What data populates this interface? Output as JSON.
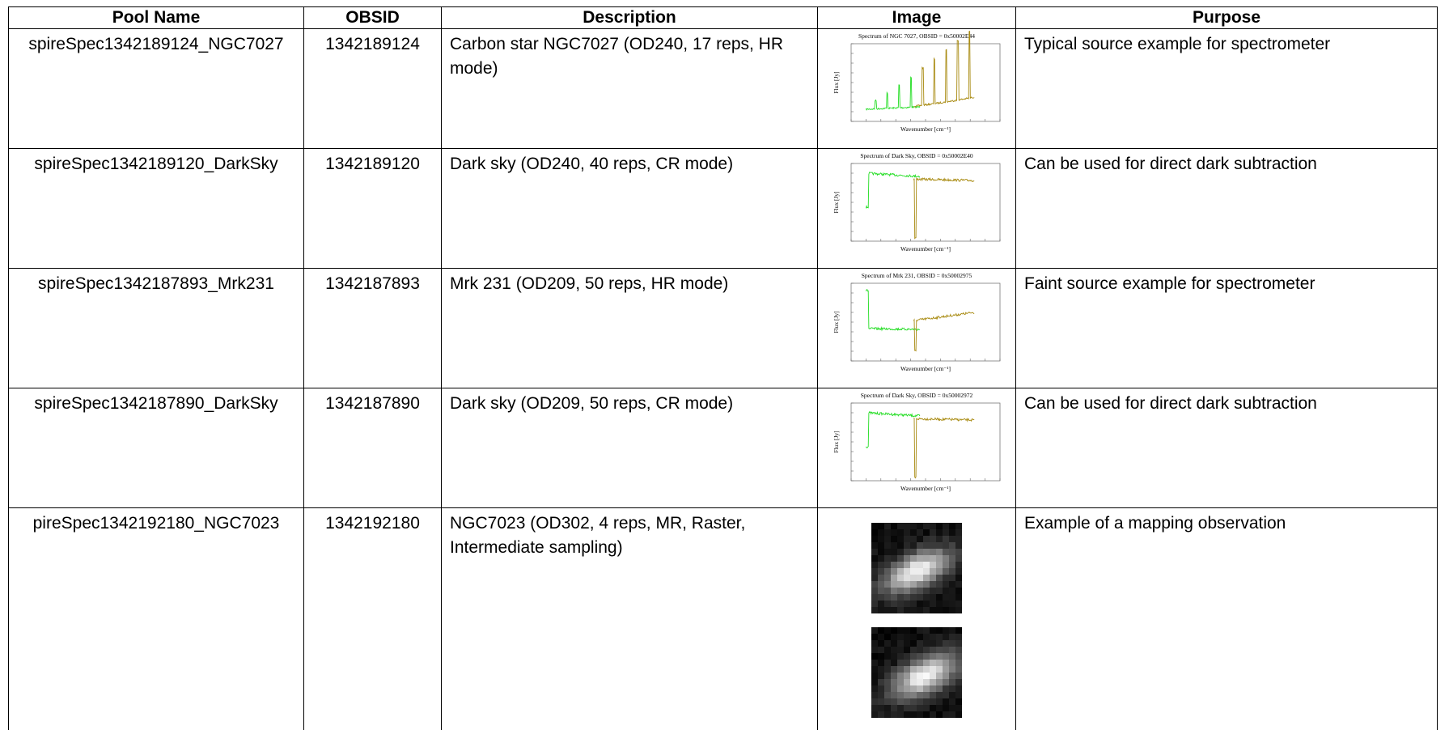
{
  "table": {
    "columns": [
      "Pool Name",
      "OBSID",
      "Description",
      "Image",
      "Purpose"
    ],
    "rows": [
      {
        "pool_name": "spireSpec1342189124_NGC7027",
        "obsid": "1342189124",
        "description": "Carbon star NGC7027 (OD240, 17 reps, HR mode)",
        "image": {
          "title": "Spectrum of NGC 7027, OBSID = 0x50002E44",
          "ylabel": "Flux [Jy]",
          "xlabel": "Wavenumber [cm⁻¹]"
        },
        "purpose": "Typical source example for spectrometer"
      },
      {
        "pool_name": "spireSpec1342189120_DarkSky",
        "obsid": "1342189120",
        "description": "Dark sky (OD240, 40 reps, CR mode)",
        "image": {
          "title": "Spectrum of Dark Sky, OBSID = 0x50002E40",
          "ylabel": "Flux [Jy]",
          "xlabel": "Wavenumber [cm⁻¹]"
        },
        "purpose": "Can be used for direct dark subtraction"
      },
      {
        "pool_name": "spireSpec1342187893_Mrk231",
        "obsid": "1342187893",
        "description": "Mrk 231 (OD209, 50 reps, HR mode)",
        "image": {
          "title": "Spectrum of Mrk 231, OBSID = 0x50002975",
          "ylabel": "Flux [Jy]",
          "xlabel": "Wavenumber [cm⁻¹]"
        },
        "purpose": "Faint source example for spectrometer"
      },
      {
        "pool_name": "spireSpec1342187890_DarkSky",
        "obsid": "1342187890",
        "description": "Dark sky (OD209, 50 reps, CR mode)",
        "image": {
          "title": "Spectrum of Dark Sky, OBSID = 0x50002972",
          "ylabel": "Flux [Jy]",
          "xlabel": "Wavenumber [cm⁻¹]"
        },
        "purpose": "Can be used for direct dark subtraction"
      },
      {
        "pool_name": "pireSpec1342192180_NGC7023",
        "obsid": "1342192180",
        "description": "NGC7023 (OD302, 4 reps, MR, Raster, Intermediate sampling)",
        "purpose": "Example of a mapping observation"
      }
    ]
  }
}
